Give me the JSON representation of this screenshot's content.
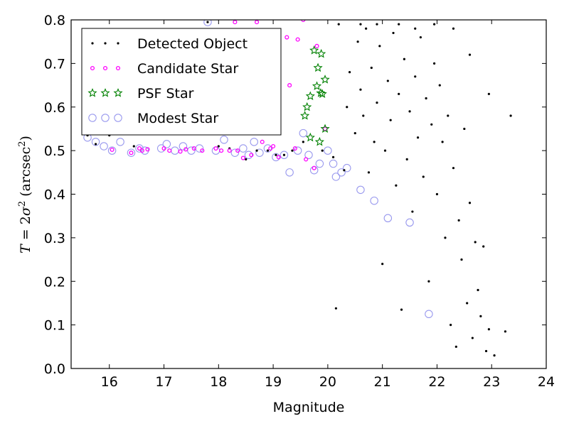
{
  "chart_data": {
    "type": "scatter",
    "xlabel": "Magnitude",
    "ylabel": "T = 2σ² (arcsec²)",
    "ylabel_parts": {
      "t": "T",
      "eq": " = 2",
      "sigma": "σ",
      "two": "2",
      "unit": " (arcsec",
      "unitsup": "2",
      "close": ")"
    },
    "xlim": [
      15.3,
      24
    ],
    "ylim": [
      0.0,
      0.8
    ],
    "xticks": [
      16,
      17,
      18,
      19,
      20,
      21,
      22,
      23,
      24
    ],
    "yticks": [
      0.0,
      0.1,
      0.2,
      0.3,
      0.4,
      0.5,
      0.6,
      0.7,
      0.8
    ],
    "xtick_labels": [
      "16",
      "17",
      "18",
      "19",
      "20",
      "21",
      "22",
      "23",
      "24"
    ],
    "ytick_labels": [
      "0.0",
      "0.1",
      "0.2",
      "0.3",
      "0.4",
      "0.5",
      "0.6",
      "0.7",
      "0.8"
    ],
    "grid": false,
    "legend_position": "top-left",
    "colors": {
      "detected": "#000000",
      "candidate": "#ff00ff",
      "psf": "#008000",
      "modest": "#9999ee"
    },
    "series": [
      {
        "name": "Detected Object",
        "marker": "dot",
        "color": "#000000",
        "points": [
          [
            15.6,
            0.535
          ],
          [
            15.75,
            0.515
          ],
          [
            16.0,
            0.535
          ],
          [
            16.45,
            0.51
          ],
          [
            17.8,
            0.795
          ],
          [
            18.0,
            0.51
          ],
          [
            18.2,
            0.505
          ],
          [
            18.5,
            0.48
          ],
          [
            18.7,
            0.5
          ],
          [
            18.9,
            0.5
          ],
          [
            19.05,
            0.49
          ],
          [
            19.2,
            0.49
          ],
          [
            19.35,
            0.5
          ],
          [
            19.55,
            0.52
          ],
          [
            19.9,
            0.5
          ],
          [
            20.1,
            0.485
          ],
          [
            20.15,
            0.138
          ],
          [
            20.3,
            0.455
          ],
          [
            20.35,
            0.6
          ],
          [
            20.4,
            0.68
          ],
          [
            20.5,
            0.54
          ],
          [
            20.55,
            0.75
          ],
          [
            20.6,
            0.64
          ],
          [
            20.65,
            0.58
          ],
          [
            20.7,
            0.78
          ],
          [
            20.75,
            0.45
          ],
          [
            20.8,
            0.69
          ],
          [
            20.85,
            0.52
          ],
          [
            20.9,
            0.61
          ],
          [
            20.95,
            0.74
          ],
          [
            21.0,
            0.24
          ],
          [
            21.05,
            0.5
          ],
          [
            21.1,
            0.66
          ],
          [
            21.15,
            0.57
          ],
          [
            21.2,
            0.77
          ],
          [
            21.25,
            0.42
          ],
          [
            21.3,
            0.63
          ],
          [
            21.35,
            0.135
          ],
          [
            21.4,
            0.71
          ],
          [
            21.45,
            0.48
          ],
          [
            21.5,
            0.59
          ],
          [
            21.55,
            0.36
          ],
          [
            21.6,
            0.67
          ],
          [
            21.65,
            0.53
          ],
          [
            21.7,
            0.76
          ],
          [
            21.75,
            0.44
          ],
          [
            21.8,
            0.62
          ],
          [
            21.85,
            0.2
          ],
          [
            21.9,
            0.56
          ],
          [
            21.95,
            0.7
          ],
          [
            22.0,
            0.4
          ],
          [
            22.05,
            0.65
          ],
          [
            22.1,
            0.52
          ],
          [
            22.15,
            0.3
          ],
          [
            22.2,
            0.58
          ],
          [
            22.25,
            0.1
          ],
          [
            22.3,
            0.46
          ],
          [
            22.35,
            0.05
          ],
          [
            22.4,
            0.34
          ],
          [
            22.45,
            0.25
          ],
          [
            22.5,
            0.55
          ],
          [
            22.55,
            0.15
          ],
          [
            22.6,
            0.38
          ],
          [
            22.65,
            0.07
          ],
          [
            22.7,
            0.29
          ],
          [
            22.75,
            0.18
          ],
          [
            22.8,
            0.12
          ],
          [
            22.85,
            0.28
          ],
          [
            22.9,
            0.04
          ],
          [
            22.95,
            0.09
          ],
          [
            23.05,
            0.03
          ],
          [
            23.25,
            0.085
          ],
          [
            23.35,
            0.58
          ],
          [
            22.95,
            0.63
          ],
          [
            22.6,
            0.72
          ],
          [
            22.3,
            0.78
          ],
          [
            21.95,
            0.79
          ],
          [
            21.6,
            0.78
          ],
          [
            21.3,
            0.79
          ],
          [
            20.9,
            0.79
          ],
          [
            20.6,
            0.79
          ],
          [
            20.2,
            0.79
          ]
        ]
      },
      {
        "name": "Candidate Star",
        "marker": "ring",
        "color": "#ff00ff",
        "points": [
          [
            16.05,
            0.502
          ],
          [
            16.4,
            0.495
          ],
          [
            16.55,
            0.505
          ],
          [
            16.6,
            0.5
          ],
          [
            16.7,
            0.503
          ],
          [
            17.0,
            0.505
          ],
          [
            17.1,
            0.5
          ],
          [
            17.3,
            0.498
          ],
          [
            17.4,
            0.503
          ],
          [
            17.55,
            0.505
          ],
          [
            17.7,
            0.5
          ],
          [
            17.95,
            0.505
          ],
          [
            18.05,
            0.5
          ],
          [
            18.3,
            0.795
          ],
          [
            18.35,
            0.5
          ],
          [
            18.45,
            0.483
          ],
          [
            18.6,
            0.49
          ],
          [
            18.7,
            0.795
          ],
          [
            18.8,
            0.52
          ],
          [
            18.95,
            0.505
          ],
          [
            19.0,
            0.51
          ],
          [
            19.1,
            0.485
          ],
          [
            19.25,
            0.76
          ],
          [
            19.3,
            0.65
          ],
          [
            19.45,
            0.755
          ],
          [
            19.55,
            0.8
          ],
          [
            19.6,
            0.48
          ],
          [
            19.75,
            0.46
          ],
          [
            19.8,
            0.74
          ],
          [
            19.95,
            0.55
          ],
          [
            19.4,
            0.505
          ],
          [
            18.2,
            0.5
          ]
        ]
      },
      {
        "name": "PSF Star",
        "marker": "star",
        "color": "#008000",
        "points": [
          [
            19.75,
            0.73
          ],
          [
            19.82,
            0.69
          ],
          [
            19.88,
            0.722
          ],
          [
            19.8,
            0.648
          ],
          [
            19.68,
            0.625
          ],
          [
            19.87,
            0.632
          ],
          [
            19.62,
            0.6
          ],
          [
            19.58,
            0.58
          ],
          [
            19.95,
            0.663
          ],
          [
            19.95,
            0.55
          ],
          [
            19.85,
            0.52
          ],
          [
            19.68,
            0.53
          ],
          [
            19.9,
            0.63
          ]
        ]
      },
      {
        "name": "Modest Star",
        "marker": "circle",
        "color": "#9999ee",
        "points": [
          [
            15.6,
            0.53
          ],
          [
            15.75,
            0.52
          ],
          [
            15.9,
            0.51
          ],
          [
            16.05,
            0.5
          ],
          [
            16.2,
            0.52
          ],
          [
            16.4,
            0.495
          ],
          [
            16.55,
            0.505
          ],
          [
            16.65,
            0.5
          ],
          [
            16.95,
            0.505
          ],
          [
            17.05,
            0.515
          ],
          [
            17.2,
            0.5
          ],
          [
            17.35,
            0.51
          ],
          [
            17.5,
            0.5
          ],
          [
            17.65,
            0.505
          ],
          [
            17.8,
            0.795
          ],
          [
            17.95,
            0.5
          ],
          [
            18.1,
            0.525
          ],
          [
            18.3,
            0.495
          ],
          [
            18.45,
            0.505
          ],
          [
            18.55,
            0.49
          ],
          [
            18.65,
            0.52
          ],
          [
            18.75,
            0.495
          ],
          [
            18.9,
            0.505
          ],
          [
            19.05,
            0.485
          ],
          [
            19.2,
            0.49
          ],
          [
            19.3,
            0.45
          ],
          [
            19.45,
            0.5
          ],
          [
            19.55,
            0.54
          ],
          [
            19.65,
            0.49
          ],
          [
            19.75,
            0.455
          ],
          [
            19.85,
            0.47
          ],
          [
            20.0,
            0.5
          ],
          [
            20.1,
            0.47
          ],
          [
            20.15,
            0.44
          ],
          [
            20.25,
            0.45
          ],
          [
            20.35,
            0.46
          ],
          [
            20.6,
            0.41
          ],
          [
            20.85,
            0.385
          ],
          [
            21.1,
            0.345
          ],
          [
            21.5,
            0.335
          ],
          [
            21.85,
            0.125
          ]
        ]
      }
    ]
  }
}
